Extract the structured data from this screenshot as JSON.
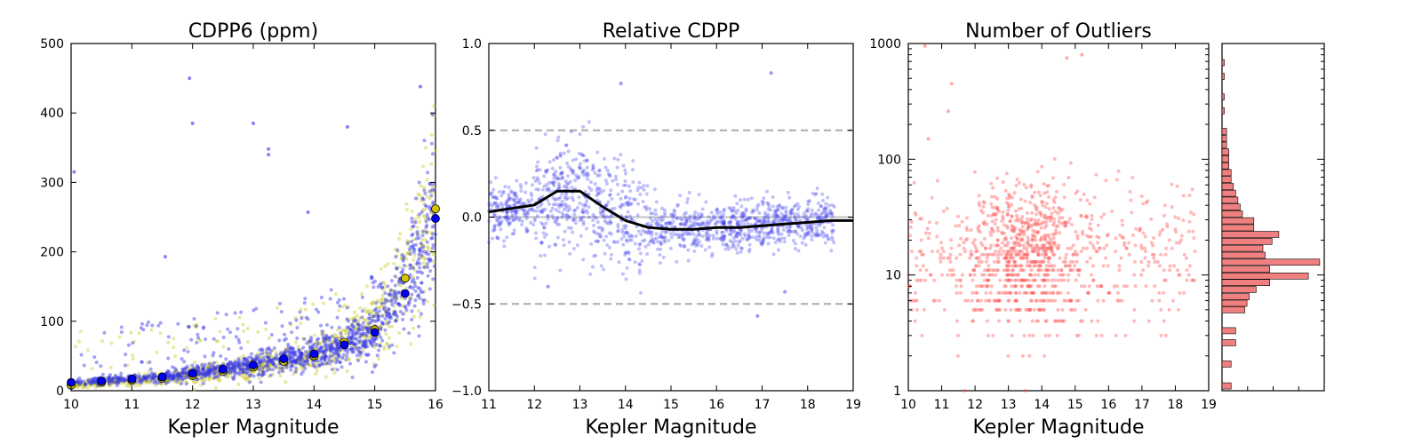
{
  "colors": {
    "yellow_points": "#cccc33",
    "blue_points": "#3333ee",
    "yellow_markers": "#d4c400",
    "blue_markers": "#0000ee",
    "median_line": "#000000",
    "dashed_line": "#aaaaaa",
    "outlier_points": "#ff5555",
    "hist_bars": "#f08080"
  },
  "chart_data": [
    {
      "type": "scatter",
      "title": "CDPP6 (ppm)",
      "xlabel": "Kepler Magnitude",
      "ylabel": "",
      "xlim": [
        10,
        16
      ],
      "ylim": [
        0,
        500
      ],
      "x_ticks": [
        "10",
        "11",
        "12",
        "13",
        "14",
        "15",
        "16"
      ],
      "y_ticks": [
        "0",
        "100",
        "200",
        "300",
        "400",
        "500"
      ],
      "series": [
        {
          "marker_color": "yellow",
          "binned_x": [
            10.0,
            10.5,
            11.0,
            11.5,
            12.0,
            12.5,
            13.0,
            13.5,
            14.0,
            14.5,
            15.0,
            15.5,
            16.0
          ],
          "binned_y": [
            8,
            12,
            15,
            18,
            22,
            28,
            34,
            42,
            50,
            70,
            88,
            162,
            262
          ]
        },
        {
          "marker_color": "blue",
          "binned_x": [
            10.0,
            10.5,
            11.0,
            11.5,
            12.0,
            12.5,
            13.0,
            13.5,
            14.0,
            14.5,
            15.0,
            15.5,
            16.0
          ],
          "binned_y": [
            12,
            14,
            17,
            20,
            25,
            31,
            37,
            46,
            53,
            66,
            84,
            140,
            248
          ]
        }
      ],
      "notable_points": [
        {
          "x": 11.95,
          "y": 450
        },
        {
          "x": 12.0,
          "y": 385
        },
        {
          "x": 13.0,
          "y": 385
        },
        {
          "x": 13.25,
          "y": 348
        },
        {
          "x": 13.25,
          "y": 340
        },
        {
          "x": 14.55,
          "y": 380
        },
        {
          "x": 15.75,
          "y": 438
        },
        {
          "x": 15.95,
          "y": 398
        },
        {
          "x": 10.05,
          "y": 315
        },
        {
          "x": 11.55,
          "y": 193
        },
        {
          "x": 13.9,
          "y": 257
        }
      ]
    },
    {
      "type": "scatter",
      "title": "Relative CDPP",
      "xlabel": "Kepler Magnitude",
      "ylabel": "",
      "xlim": [
        11,
        19
      ],
      "ylim": [
        -1.0,
        1.0
      ],
      "x_ticks": [
        "11",
        "12",
        "13",
        "14",
        "15",
        "16",
        "17",
        "18",
        "19"
      ],
      "y_ticks": [
        "−1.0",
        "−0.5",
        "0.0",
        "0.5",
        "1.0"
      ],
      "reference_lines": [
        0.5,
        0.0,
        -0.5
      ],
      "median_line": {
        "x": [
          11.0,
          11.5,
          12.0,
          12.5,
          13.0,
          13.5,
          14.0,
          14.5,
          15.0,
          15.5,
          16.0,
          16.5,
          17.0,
          17.5,
          18.0,
          18.5,
          19.0
        ],
        "y": [
          0.03,
          0.05,
          0.07,
          0.15,
          0.15,
          0.06,
          -0.02,
          -0.06,
          -0.07,
          -0.07,
          -0.06,
          -0.06,
          -0.05,
          -0.04,
          -0.03,
          -0.02,
          -0.02
        ]
      },
      "notable_points": [
        {
          "x": 17.2,
          "y": 0.83
        },
        {
          "x": 13.9,
          "y": 0.77
        },
        {
          "x": 12.3,
          "y": -0.4
        },
        {
          "x": 16.9,
          "y": -0.57
        },
        {
          "x": 17.5,
          "y": -0.43
        }
      ]
    },
    {
      "type": "scatter",
      "title": "Number of Outliers",
      "xlabel": "Kepler Magnitude",
      "ylabel": "",
      "xlim": [
        10,
        19
      ],
      "ylim": [
        1,
        1000
      ],
      "yscale": "log",
      "x_ticks": [
        "10",
        "11",
        "12",
        "13",
        "14",
        "15",
        "16",
        "17",
        "18",
        "19"
      ],
      "y_ticks": [
        "1",
        "10",
        "100",
        "1000"
      ],
      "marginal_histogram": {
        "orientation": "horizontal",
        "bins": [
          {
            "y": 1.1,
            "count": 4
          },
          {
            "y": 1.7,
            "count": 4
          },
          {
            "y": 2.6,
            "count": 6
          },
          {
            "y": 3.3,
            "count": 6
          },
          {
            "y": 5,
            "count": 10
          },
          {
            "y": 5.7,
            "count": 11
          },
          {
            "y": 6.5,
            "count": 12
          },
          {
            "y": 7.5,
            "count": 15
          },
          {
            "y": 8.6,
            "count": 21
          },
          {
            "y": 9.8,
            "count": 38
          },
          {
            "y": 11.2,
            "count": 21
          },
          {
            "y": 12.9,
            "count": 43
          },
          {
            "y": 14.8,
            "count": 19
          },
          {
            "y": 17.0,
            "count": 18
          },
          {
            "y": 19.5,
            "count": 22
          },
          {
            "y": 22.4,
            "count": 25
          },
          {
            "y": 25.6,
            "count": 14
          },
          {
            "y": 29.4,
            "count": 14
          },
          {
            "y": 33.7,
            "count": 9
          },
          {
            "y": 38.6,
            "count": 8
          },
          {
            "y": 44.3,
            "count": 7
          },
          {
            "y": 50.8,
            "count": 6
          },
          {
            "y": 58.2,
            "count": 5
          },
          {
            "y": 66.8,
            "count": 4
          },
          {
            "y": 76.6,
            "count": 4
          },
          {
            "y": 87.8,
            "count": 3
          },
          {
            "y": 100.7,
            "count": 3
          },
          {
            "y": 115.5,
            "count": 3
          },
          {
            "y": 132.4,
            "count": 2
          },
          {
            "y": 151.8,
            "count": 2
          },
          {
            "y": 174.1,
            "count": 2
          },
          {
            "y": 262.4,
            "count": 1
          },
          {
            "y": 345.0,
            "count": 1
          },
          {
            "y": 519.6,
            "count": 1
          },
          {
            "y": 683.3,
            "count": 1
          }
        ]
      },
      "notable_points": [
        {
          "x": 10.5,
          "y": 950
        },
        {
          "x": 15.2,
          "y": 800
        },
        {
          "x": 14.75,
          "y": 750
        },
        {
          "x": 11.3,
          "y": 450
        },
        {
          "x": 11.2,
          "y": 260
        },
        {
          "x": 10.6,
          "y": 150
        },
        {
          "x": 13.5,
          "y": 1
        },
        {
          "x": 11.7,
          "y": 1
        }
      ]
    }
  ]
}
